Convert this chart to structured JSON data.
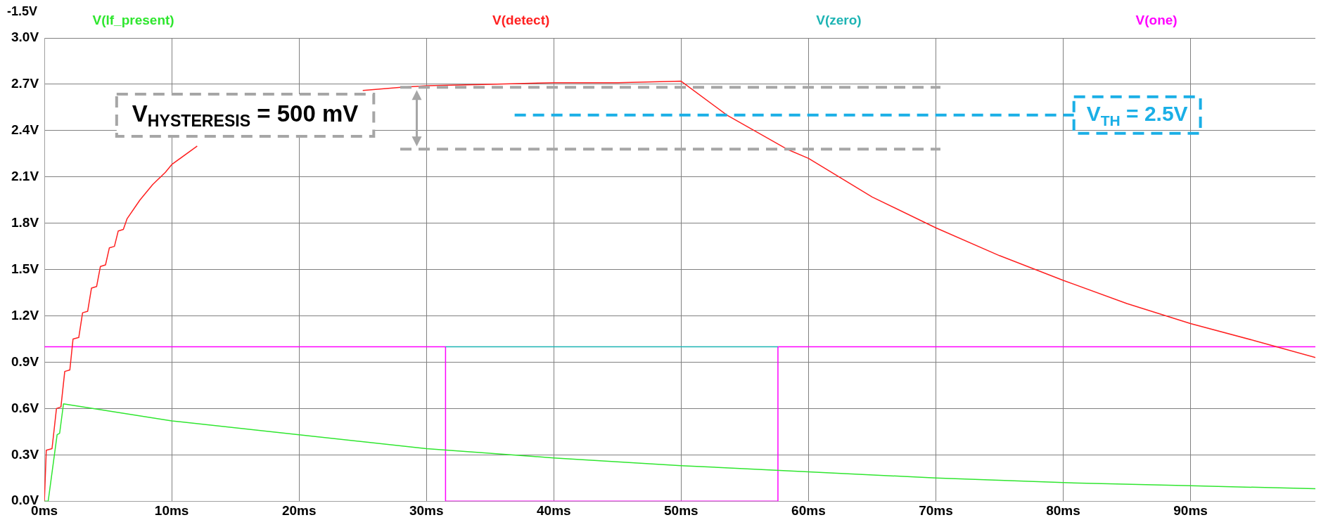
{
  "chart_data": {
    "type": "line",
    "annotations": [
      "-1.5V",
      "V$_{HYSTERESIS}$ = 500 mV"
    ],
    "xlim": [
      0,
      99.8
    ],
    "xticks": [
      {
        "value": 0,
        "label": "0ms"
      },
      {
        "value": 10,
        "label": "10ms"
      },
      {
        "value": 20,
        "label": "20ms"
      },
      {
        "value": 30,
        "label": "30ms"
      },
      {
        "value": 40,
        "label": "40ms"
      },
      {
        "value": 50,
        "label": "50ms"
      },
      {
        "value": 60,
        "label": "60ms"
      },
      {
        "value": 70,
        "label": "70ms"
      },
      {
        "value": 80,
        "label": "80ms"
      },
      {
        "value": 90,
        "label": "90ms"
      }
    ],
    "ylim": [
      0,
      3
    ],
    "yticks": [
      {
        "value": 0,
        "label": "0.0V"
      },
      {
        "value": 0.3,
        "label": "0.3V"
      },
      {
        "value": 0.6,
        "label": "0.6V"
      },
      {
        "value": 0.9,
        "label": "0.9V"
      },
      {
        "value": 1.2,
        "label": "1.2V"
      },
      {
        "value": 1.5,
        "label": "1.5V"
      },
      {
        "value": 1.8,
        "label": "1.8V"
      },
      {
        "value": 2.1,
        "label": "2.1V"
      },
      {
        "value": 2.4,
        "label": "2.4V"
      },
      {
        "value": 2.7,
        "label": "2.7V"
      },
      {
        "value": 3,
        "label": "3.0V"
      }
    ],
    "grid": true,
    "legend": "top",
    "marker": "none",
    "line_style": "solid",
    "series": [
      {
        "name": "V(lf_present)",
        "color": "#2fe62f",
        "x": [
          0,
          0.3,
          1.0,
          1.2,
          1.5,
          10,
          20,
          30,
          40,
          50,
          60,
          70,
          80,
          90,
          99.8
        ],
        "values": [
          0,
          0,
          0.43,
          0.44,
          0.63,
          0.52,
          0.43,
          0.34,
          0.28,
          0.23,
          0.19,
          0.15,
          0.12,
          0.1,
          0.08
        ]
      },
      {
        "name": "V(detect)",
        "color": "#ff2020",
        "x": [
          0,
          0.15,
          0.6,
          0.95,
          1.3,
          1.6,
          2.0,
          2.25,
          2.7,
          3.0,
          3.4,
          3.7,
          4.1,
          4.4,
          4.8,
          5.1,
          5.5,
          5.8,
          6.2,
          6.5,
          7.5,
          8.5,
          9.5,
          10,
          12,
          14,
          16,
          18,
          20,
          22,
          25,
          28,
          30,
          35,
          40,
          45,
          50,
          53.6,
          58.3,
          60,
          65,
          70,
          75,
          80,
          85,
          90,
          95,
          99.8
        ],
        "values": [
          0,
          0.33,
          0.34,
          0.6,
          0.61,
          0.84,
          0.85,
          1.05,
          1.06,
          1.22,
          1.23,
          1.38,
          1.39,
          1.52,
          1.53,
          1.64,
          1.65,
          1.75,
          1.76,
          1.83,
          1.95,
          2.05,
          2.13,
          2.18,
          2.3,
          null,
          null,
          null,
          null,
          null,
          2.66,
          2.68,
          2.69,
          2.7,
          2.71,
          2.71,
          2.72,
          2.5,
          2.28,
          2.22,
          1.97,
          1.77,
          1.59,
          1.43,
          1.28,
          1.15,
          1.04,
          0.93
        ]
      },
      {
        "name": "V(zero)",
        "color": "#1eb4b4",
        "type": "step",
        "x": [
          31.5,
          57.6
        ],
        "values": [
          1,
          1
        ]
      },
      {
        "name": "V(one)",
        "color": "#ff00ff",
        "type": "step",
        "x": [
          0,
          31.5,
          31.5,
          57.6,
          57.6,
          99.8
        ],
        "values": [
          1,
          1,
          0,
          0,
          1,
          1
        ]
      }
    ],
    "ref_lines": [
      {
        "axis": "y",
        "value": 2.68,
        "color": "#a6a6a6",
        "line_style": "dashed"
      },
      {
        "axis": "y",
        "value": 2.28,
        "color": "#a6a6a6",
        "line_style": "dashed"
      },
      {
        "axis": "y",
        "value": 2.5,
        "label": "V$_{TH}$ = 2.5V",
        "color": "#1aafe6",
        "line_style": "dashed"
      }
    ]
  }
}
